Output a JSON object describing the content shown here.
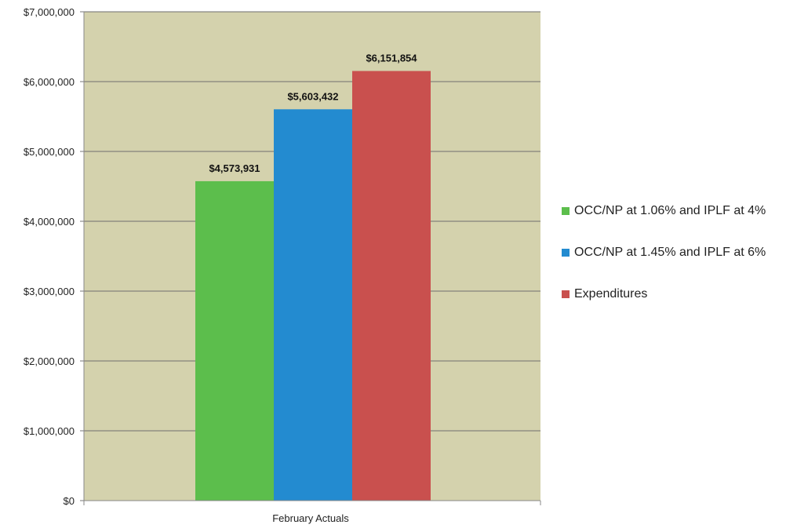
{
  "chart_data": {
    "type": "bar",
    "categories": [
      "February Actuals"
    ],
    "series": [
      {
        "name": "OCC/NP at 1.06% and IPLF at 4%",
        "values": [
          4573931
        ],
        "label": "$4,573,931",
        "color": "#5cbe4c"
      },
      {
        "name": "OCC/NP at 1.45% and IPLF at 6%",
        "values": [
          5603432
        ],
        "label": "$5,603,432",
        "color": "#238bd0"
      },
      {
        "name": "Expenditures",
        "values": [
          6151854
        ],
        "label": "$6,151,854",
        "color": "#c9504e"
      }
    ],
    "yticks": [
      "$0",
      "$1,000,000",
      "$2,000,000",
      "$3,000,000",
      "$4,000,000",
      "$5,000,000",
      "$6,000,000",
      "$7,000,000"
    ],
    "ylim": [
      0,
      7000000
    ],
    "title": "",
    "xlabel": "",
    "ylabel": "",
    "grid": true,
    "legend_position": "right",
    "plot_background": "#d4d2ad"
  }
}
